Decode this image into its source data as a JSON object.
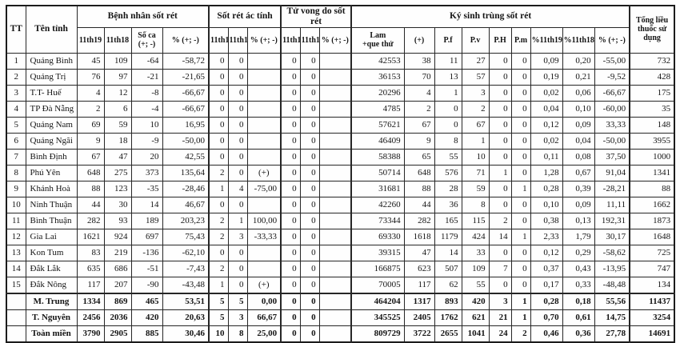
{
  "table": {
    "header": {
      "tt": "TT",
      "province": "Tên tỉnh",
      "total_label": "Tổng liều\nthuốc sử\ndụng",
      "groups": [
        {
          "label": "Bệnh nhân sốt rét",
          "cols": [
            "11th19",
            "11th18",
            "Số ca\n(+; -)",
            "% (+; -)"
          ]
        },
        {
          "label": "Sốt rét ác tính",
          "cols": [
            "11th19",
            "11th18",
            "% (+; -)"
          ]
        },
        {
          "label": "Tử vong do sốt rét",
          "cols": [
            "11th19",
            "11th18",
            "% (+; -)"
          ]
        },
        {
          "label": "Ký sinh trùng sốt rét",
          "cols": [
            "Lam\n+que thử",
            "(+)",
            "P.f",
            "P.v",
            "P.H",
            "P.m",
            "%11th19",
            "%11th18",
            "% (+; -)"
          ]
        }
      ]
    },
    "rows": [
      {
        "tt": "1",
        "province": "Quảng Bình",
        "cells": [
          "45",
          "109",
          "-64",
          "-58,72",
          "0",
          "0",
          "",
          "0",
          "0",
          "",
          "42553",
          "38",
          "11",
          "27",
          "0",
          "0",
          "0,09",
          "0,20",
          "-55,00",
          "732"
        ]
      },
      {
        "tt": "2",
        "province": "Quảng Trị",
        "cells": [
          "76",
          "97",
          "-21",
          "-21,65",
          "0",
          "0",
          "",
          "0",
          "0",
          "",
          "36153",
          "70",
          "13",
          "57",
          "0",
          "0",
          "0,19",
          "0,21",
          "-9,52",
          "428"
        ]
      },
      {
        "tt": "3",
        "province": "T.T- Huế",
        "cells": [
          "4",
          "12",
          "-8",
          "-66,67",
          "0",
          "0",
          "",
          "0",
          "0",
          "",
          "20296",
          "4",
          "1",
          "3",
          "0",
          "0",
          "0,02",
          "0,06",
          "-66,67",
          "175"
        ]
      },
      {
        "tt": "4",
        "province": "TP Đà Nẵng",
        "cells": [
          "2",
          "6",
          "-4",
          "-66,67",
          "0",
          "0",
          "",
          "0",
          "0",
          "",
          "4785",
          "2",
          "0",
          "2",
          "0",
          "0",
          "0,04",
          "0,10",
          "-60,00",
          "35"
        ]
      },
      {
        "tt": "5",
        "province": "Quảng Nam",
        "cells": [
          "69",
          "59",
          "10",
          "16,95",
          "0",
          "0",
          "",
          "0",
          "0",
          "",
          "57621",
          "67",
          "0",
          "67",
          "0",
          "0",
          "0,12",
          "0,09",
          "33,33",
          "148"
        ]
      },
      {
        "tt": "6",
        "province": "Quảng Ngãi",
        "cells": [
          "9",
          "18",
          "-9",
          "-50,00",
          "0",
          "0",
          "",
          "0",
          "0",
          "",
          "46409",
          "9",
          "8",
          "1",
          "0",
          "0",
          "0,02",
          "0,04",
          "-50,00",
          "3955"
        ]
      },
      {
        "tt": "7",
        "province": "Bình Định",
        "cells": [
          "67",
          "47",
          "20",
          "42,55",
          "0",
          "0",
          "",
          "0",
          "0",
          "",
          "58388",
          "65",
          "55",
          "10",
          "0",
          "0",
          "0,11",
          "0,08",
          "37,50",
          "1000"
        ]
      },
      {
        "tt": "8",
        "province": "Phú Yên",
        "cells": [
          "648",
          "275",
          "373",
          "135,64",
          "2",
          "0",
          "(+)",
          "0",
          "0",
          "",
          "50714",
          "648",
          "576",
          "71",
          "1",
          "0",
          "1,28",
          "0,67",
          "91,04",
          "1341"
        ]
      },
      {
        "tt": "9",
        "province": "Khánh Hoà",
        "cells": [
          "88",
          "123",
          "-35",
          "-28,46",
          "1",
          "4",
          "-75,00",
          "0",
          "0",
          "",
          "31681",
          "88",
          "28",
          "59",
          "0",
          "1",
          "0,28",
          "0,39",
          "-28,21",
          "88"
        ]
      },
      {
        "tt": "10",
        "province": "Ninh Thuận",
        "cells": [
          "44",
          "30",
          "14",
          "46,67",
          "0",
          "0",
          "",
          "0",
          "0",
          "",
          "42260",
          "44",
          "36",
          "8",
          "0",
          "0",
          "0,10",
          "0,09",
          "11,11",
          "1662"
        ]
      },
      {
        "tt": "11",
        "province": "Bình Thuận",
        "cells": [
          "282",
          "93",
          "189",
          "203,23",
          "2",
          "1",
          "100,00",
          "0",
          "0",
          "",
          "73344",
          "282",
          "165",
          "115",
          "2",
          "0",
          "0,38",
          "0,13",
          "192,31",
          "1873"
        ]
      },
      {
        "tt": "12",
        "province": "Gia Lai",
        "cells": [
          "1621",
          "924",
          "697",
          "75,43",
          "2",
          "3",
          "-33,33",
          "0",
          "0",
          "",
          "69330",
          "1618",
          "1179",
          "424",
          "14",
          "1",
          "2,33",
          "1,79",
          "30,17",
          "1648"
        ]
      },
      {
        "tt": "13",
        "province": "Kon Tum",
        "cells": [
          "83",
          "219",
          "-136",
          "-62,10",
          "0",
          "0",
          "",
          "0",
          "0",
          "",
          "39315",
          "47",
          "14",
          "33",
          "0",
          "0",
          "0,12",
          "0,29",
          "-58,62",
          "725"
        ]
      },
      {
        "tt": "14",
        "province": "Đắk Lắk",
        "cells": [
          "635",
          "686",
          "-51",
          "-7,43",
          "2",
          "0",
          "",
          "0",
          "0",
          "",
          "166875",
          "623",
          "507",
          "109",
          "7",
          "0",
          "0,37",
          "0,43",
          "-13,95",
          "747"
        ]
      },
      {
        "tt": "15",
        "province": "Đắk Nông",
        "cells": [
          "117",
          "207",
          "-90",
          "-43,48",
          "1",
          "0",
          "(+)",
          "0",
          "0",
          "",
          "70005",
          "117",
          "62",
          "55",
          "0",
          "0",
          "0,17",
          "0,33",
          "-48,48",
          "134"
        ]
      }
    ],
    "summary_rows": [
      {
        "tt": "",
        "province": "M. Trung",
        "cells": [
          "1334",
          "869",
          "465",
          "53,51",
          "5",
          "5",
          "0,00",
          "0",
          "0",
          "",
          "464204",
          "1317",
          "893",
          "420",
          "3",
          "1",
          "0,28",
          "0,18",
          "55,56",
          "11437"
        ]
      },
      {
        "tt": "",
        "province": "T. Nguyên",
        "cells": [
          "2456",
          "2036",
          "420",
          "20,63",
          "5",
          "3",
          "66,67",
          "0",
          "0",
          "",
          "345525",
          "2405",
          "1762",
          "621",
          "21",
          "1",
          "0,70",
          "0,61",
          "14,75",
          "3254"
        ]
      },
      {
        "tt": "",
        "province": "Toàn miền",
        "cells": [
          "3790",
          "2905",
          "885",
          "30,46",
          "10",
          "8",
          "25,00",
          "0",
          "0",
          "",
          "809729",
          "3722",
          "2655",
          "1041",
          "24",
          "2",
          "0,46",
          "0,36",
          "27,78",
          "14691"
        ]
      }
    ]
  }
}
